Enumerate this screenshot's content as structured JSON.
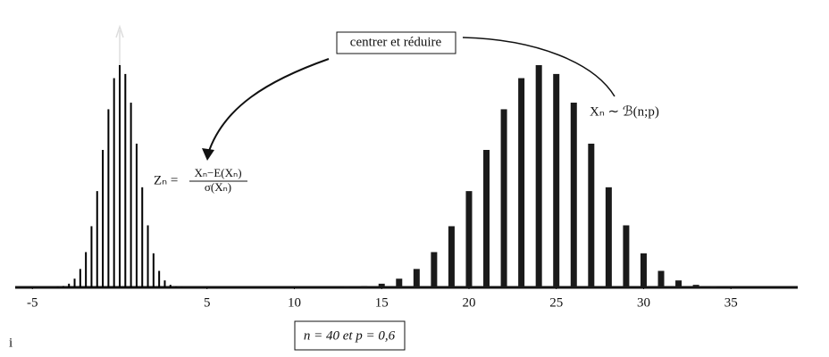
{
  "chart_data": {
    "type": "bar",
    "annotations": {
      "transform": "centrer et réduire",
      "binomial": "Xₙ ∼ ℬ(n;p)",
      "z_lhs": "Zₙ =",
      "z_num": "Xₙ−E(Xₙ)",
      "z_den": "σ(Xₙ)",
      "params": "n = 40 et p = 0,6",
      "corner": "i"
    },
    "series": [
      {
        "color": "#1a1a1a",
        "width": 7,
        "x": [
          13,
          14,
          15,
          16,
          17,
          18,
          19,
          20,
          21,
          22,
          23,
          24,
          25,
          26,
          27,
          28,
          29,
          30,
          31,
          32,
          33,
          34,
          35
        ],
        "values": [
          0.00028,
          0.00082,
          0.00212,
          0.005,
          0.0106,
          0.0203,
          0.0352,
          0.0554,
          0.0791,
          0.1025,
          0.1204,
          0.1279,
          0.1228,
          0.1063,
          0.0827,
          0.0576,
          0.0357,
          0.0196,
          0.0095,
          0.004,
          0.00146,
          0.00045,
          0.00012
        ]
      },
      {
        "color": "#000000",
        "width": 2,
        "x": [
          -3.55,
          -3.227,
          -2.905,
          -2.582,
          -2.259,
          -1.936,
          -1.614,
          -1.291,
          -0.968,
          -0.645,
          -0.323,
          0,
          0.323,
          0.645,
          0.968,
          1.291,
          1.614,
          1.936,
          2.259,
          2.582,
          2.905,
          3.227,
          3.55
        ],
        "values": [
          0.00028,
          0.00082,
          0.00212,
          0.005,
          0.0106,
          0.0203,
          0.0352,
          0.0554,
          0.0791,
          0.1025,
          0.1204,
          0.1279,
          0.1228,
          0.1063,
          0.0827,
          0.0576,
          0.0357,
          0.0196,
          0.0095,
          0.004,
          0.00146,
          0.00045,
          0.00012
        ]
      }
    ],
    "xlim": [
      -6,
      38.8
    ],
    "xticks": [
      -5,
      5,
      10,
      15,
      20,
      25,
      30,
      35
    ],
    "ylim": [
      0,
      0.14
    ]
  }
}
